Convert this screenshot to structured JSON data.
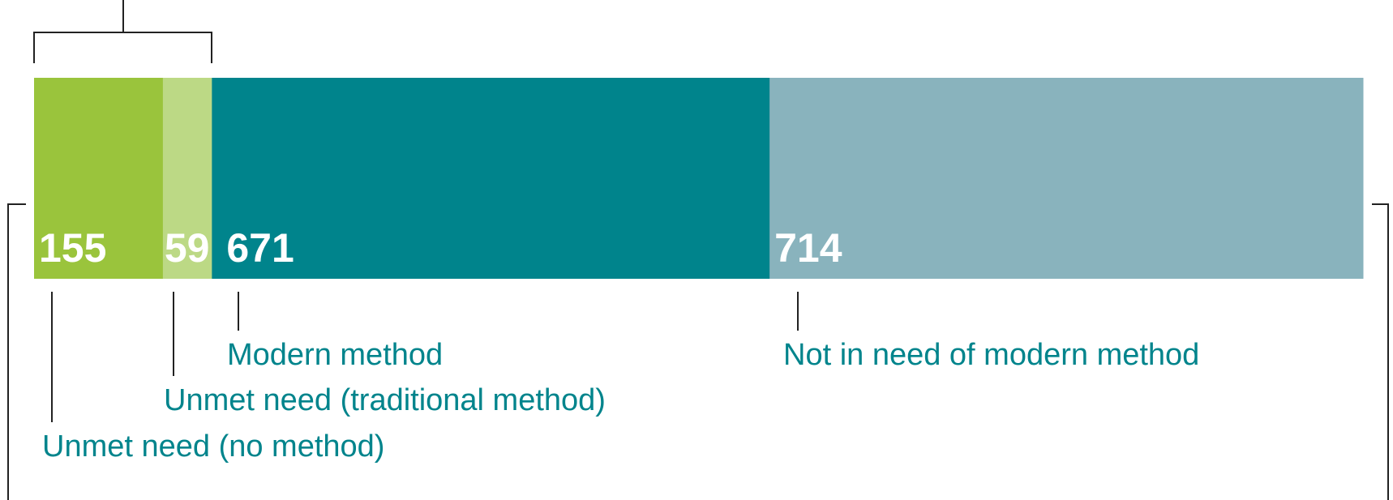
{
  "chart_data": {
    "type": "bar",
    "orientation": "horizontal-stacked",
    "title": "",
    "xlabel": "",
    "ylabel": "",
    "categories": [
      "Unmet need (no method)",
      "Unmet need (traditional method)",
      "Modern method",
      "Not in need of modern method"
    ],
    "values": [
      155,
      59,
      671,
      714
    ],
    "colors": [
      "#9ac43c",
      "#bcd985",
      "#00848c",
      "#89b3bd"
    ],
    "label_color": "#00848c",
    "bracket_color": "#222222",
    "grid": false,
    "legend": "none"
  }
}
